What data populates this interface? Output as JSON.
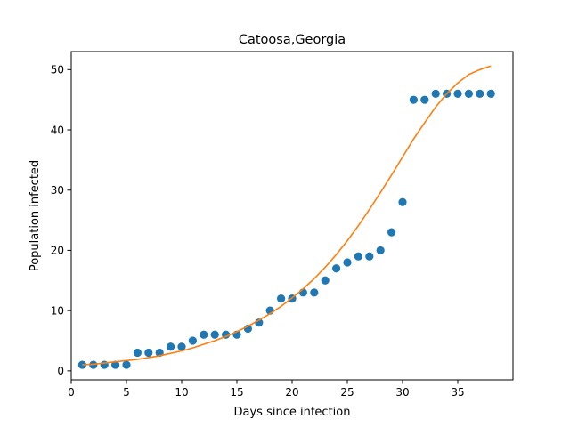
{
  "chart_data": {
    "type": "scatter",
    "title": "Catoosa,Georgia",
    "xlabel": "Days since infection",
    "ylabel": "Population infected",
    "xlim": [
      0,
      40
    ],
    "ylim": [
      -1.5,
      53
    ],
    "xticks": [
      0,
      5,
      10,
      15,
      20,
      25,
      30,
      35
    ],
    "yticks": [
      0,
      10,
      20,
      30,
      40,
      50
    ],
    "grid": false,
    "series": [
      {
        "kind": "scatter",
        "color": "#1f77b4",
        "x": [
          1,
          2,
          3,
          4,
          5,
          6,
          7,
          8,
          9,
          10,
          11,
          12,
          13,
          14,
          15,
          16,
          17,
          18,
          19,
          20,
          21,
          22,
          23,
          24,
          25,
          26,
          27,
          28,
          29,
          30,
          31,
          32,
          33,
          34,
          35,
          36,
          37,
          38
        ],
        "y": [
          1,
          1,
          1,
          1,
          1,
          3,
          3,
          3,
          4,
          4,
          5,
          6,
          6,
          6,
          6,
          7,
          8,
          10,
          12,
          12,
          13,
          13,
          15,
          17,
          18,
          19,
          19,
          20,
          23,
          28,
          45,
          45,
          46,
          46,
          46,
          46,
          46,
          46
        ]
      },
      {
        "kind": "line",
        "color": "#ff7f0e",
        "x": [
          1,
          2,
          3,
          4,
          5,
          6,
          7,
          8,
          9,
          10,
          11,
          12,
          13,
          14,
          15,
          16,
          17,
          18,
          19,
          20,
          21,
          22,
          23,
          24,
          25,
          26,
          27,
          28,
          29,
          30,
          31,
          32,
          33,
          34,
          35,
          36,
          37,
          38
        ],
        "y": [
          1.0,
          1.1,
          1.3,
          1.5,
          1.7,
          1.9,
          2.2,
          2.5,
          2.9,
          3.3,
          3.8,
          4.4,
          5.0,
          5.7,
          6.5,
          7.4,
          8.4,
          9.5,
          10.7,
          12.1,
          13.6,
          15.3,
          17.2,
          19.3,
          21.6,
          24.1,
          26.8,
          29.6,
          32.5,
          35.5,
          38.5,
          41.2,
          43.8,
          46.0,
          47.8,
          49.2,
          50.0,
          50.6
        ]
      }
    ]
  }
}
